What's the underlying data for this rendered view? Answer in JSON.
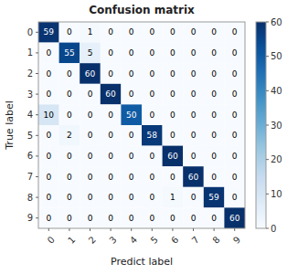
{
  "chart_data": {
    "type": "heatmap",
    "title": "Confusion matrix",
    "x_label": "Predict label",
    "y_label": "True label",
    "categories": [
      "0",
      "1",
      "2",
      "3",
      "4",
      "5",
      "6",
      "7",
      "8",
      "9"
    ],
    "cells": [
      [
        59,
        0,
        1,
        0,
        0,
        0,
        0,
        0,
        0,
        0
      ],
      [
        0,
        55,
        5,
        0,
        0,
        0,
        0,
        0,
        0,
        0
      ],
      [
        0,
        0,
        60,
        0,
        0,
        0,
        0,
        0,
        0,
        0
      ],
      [
        0,
        0,
        0,
        60,
        0,
        0,
        0,
        0,
        0,
        0
      ],
      [
        10,
        0,
        0,
        0,
        50,
        0,
        0,
        0,
        0,
        0
      ],
      [
        0,
        2,
        0,
        0,
        0,
        58,
        0,
        0,
        0,
        0
      ],
      [
        0,
        0,
        0,
        0,
        0,
        0,
        60,
        0,
        0,
        0
      ],
      [
        0,
        0,
        0,
        0,
        0,
        0,
        0,
        60,
        0,
        0
      ],
      [
        0,
        0,
        0,
        0,
        0,
        0,
        1,
        0,
        59,
        0
      ],
      [
        0,
        0,
        0,
        0,
        0,
        0,
        0,
        0,
        0,
        60
      ]
    ],
    "color_range": [
      0,
      60
    ],
    "color_ticks": [
      0,
      10,
      20,
      30,
      40,
      50,
      60
    ],
    "data_labels": true
  }
}
